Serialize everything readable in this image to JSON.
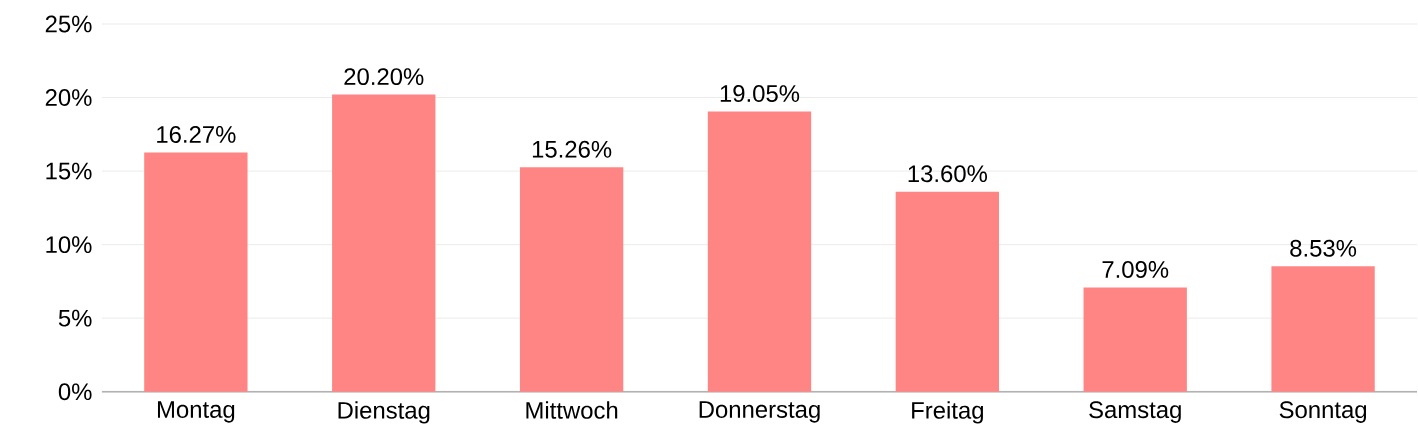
{
  "chart_data": {
    "type": "bar",
    "categories": [
      "Montag",
      "Dienstag",
      "Mittwoch",
      "Donnerstag",
      "Freitag",
      "Samstag",
      "Sonntag"
    ],
    "values": [
      16.27,
      20.2,
      15.26,
      19.05,
      13.6,
      7.09,
      8.53
    ],
    "value_labels": [
      "16.27%",
      "20.20%",
      "15.26%",
      "19.05%",
      "13.60%",
      "7.09%",
      "8.53%"
    ],
    "color": "#ff8585",
    "ylim": [
      0,
      25
    ],
    "yticks": [
      {
        "value": 0,
        "label": "0%"
      },
      {
        "value": 5,
        "label": "5%"
      },
      {
        "value": 10,
        "label": "10%"
      },
      {
        "value": 15,
        "label": "15%"
      },
      {
        "value": 20,
        "label": "20%"
      },
      {
        "value": 25,
        "label": "25%"
      }
    ],
    "grid": "y"
  }
}
